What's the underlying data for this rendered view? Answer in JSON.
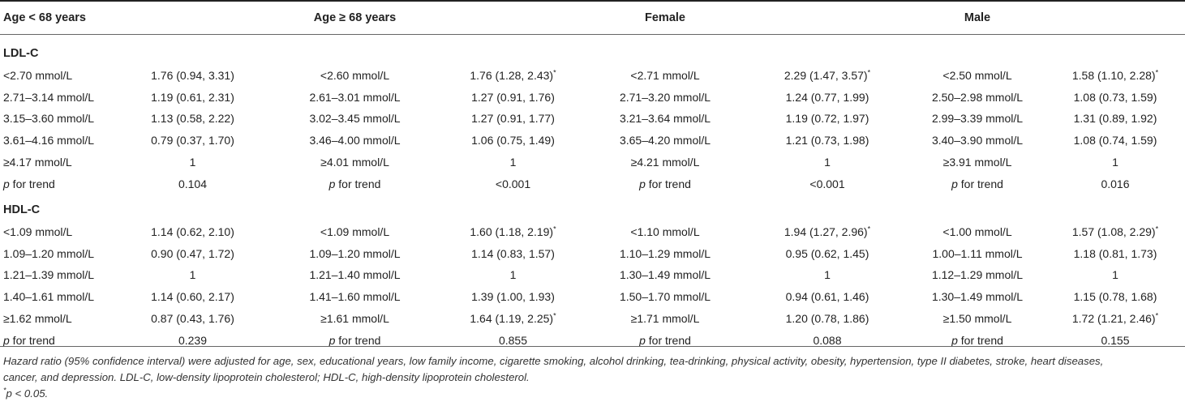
{
  "headers": {
    "col1": "Age < 68 years",
    "col2": "Age ≥ 68 years",
    "col3": "Female",
    "col4": "Male"
  },
  "sections": [
    {
      "title": "LDL-C",
      "rows": [
        [
          "<2.70 mmol/L",
          "1.76 (0.94, 3.31)",
          "<2.60 mmol/L",
          "1.76 (1.28, 2.43)*",
          "<2.71 mmol/L",
          "2.29 (1.47, 3.57)*",
          "<2.50 mmol/L",
          "1.58 (1.10, 2.28)*"
        ],
        [
          "2.71–3.14 mmol/L",
          "1.19 (0.61, 2.31)",
          "2.61–3.01 mmol/L",
          "1.27 (0.91, 1.76)",
          "2.71–3.20 mmol/L",
          "1.24 (0.77, 1.99)",
          "2.50–2.98 mmol/L",
          "1.08 (0.73, 1.59)"
        ],
        [
          "3.15–3.60 mmol/L",
          "1.13 (0.58, 2.22)",
          "3.02–3.45 mmol/L",
          "1.27 (0.91, 1.77)",
          "3.21–3.64 mmol/L",
          "1.19 (0.72, 1.97)",
          "2.99–3.39 mmol/L",
          "1.31 (0.89, 1.92)"
        ],
        [
          "3.61–4.16 mmol/L",
          "0.79 (0.37, 1.70)",
          "3.46–4.00 mmol/L",
          "1.06 (0.75, 1.49)",
          "3.65–4.20 mmol/L",
          "1.21 (0.73, 1.98)",
          "3.40–3.90 mmol/L",
          "1.08 (0.74, 1.59)"
        ],
        [
          "≥4.17 mmol/L",
          "1",
          "≥4.01 mmol/L",
          "1",
          "≥4.21 mmol/L",
          "1",
          "≥3.91 mmol/L",
          "1"
        ],
        [
          "p for trend",
          "0.104",
          "p for trend",
          "<0.001",
          "p for trend",
          "<0.001",
          "p for trend",
          "0.016"
        ]
      ]
    },
    {
      "title": "HDL-C",
      "rows": [
        [
          "<1.09 mmol/L",
          "1.14 (0.62, 2.10)",
          "<1.09 mmol/L",
          "1.60 (1.18, 2.19)*",
          "<1.10 mmol/L",
          "1.94 (1.27, 2.96)*",
          "<1.00 mmol/L",
          "1.57 (1.08, 2.29)*"
        ],
        [
          "1.09–1.20 mmol/L",
          "0.90 (0.47, 1.72)",
          "1.09–1.20 mmol/L",
          "1.14 (0.83, 1.57)",
          "1.10–1.29 mmol/L",
          "0.95 (0.62, 1.45)",
          "1.00–1.11 mmol/L",
          "1.18 (0.81, 1.73)"
        ],
        [
          "1.21–1.39 mmol/L",
          "1",
          "1.21–1.40 mmol/L",
          "1",
          "1.30–1.49 mmol/L",
          "1",
          "1.12–1.29 mmol/L",
          "1"
        ],
        [
          "1.40–1.61 mmol/L",
          "1.14 (0.60, 2.17)",
          "1.41–1.60 mmol/L",
          "1.39 (1.00, 1.93)",
          "1.50–1.70 mmol/L",
          "0.94 (0.61, 1.46)",
          "1.30–1.49 mmol/L",
          "1.15 (0.78, 1.68)"
        ],
        [
          "≥1.62 mmol/L",
          "0.87 (0.43, 1.76)",
          "≥1.61 mmol/L",
          "1.64 (1.19, 2.25)*",
          "≥1.71 mmol/L",
          "1.20 (0.78, 1.86)",
          "≥1.50 mmol/L",
          "1.72 (1.21, 2.46)*"
        ],
        [
          "p for trend",
          "0.239",
          "p for trend",
          "0.855",
          "p for trend",
          "0.088",
          "p for trend",
          "0.155"
        ]
      ]
    }
  ],
  "footnote": {
    "line1": "Hazard ratio (95% confidence interval) were adjusted for age, sex, educational years, low family income, cigarette smoking, alcohol drinking, tea-drinking, physical activity, obesity, hypertension, type II diabetes, stroke, heart diseases,",
    "line2": "cancer, and depression. LDL-C, low-density lipoprotein cholesterol; HDL-C, high-density lipoprotein cholesterol.",
    "sig_mark": "*",
    "sig_text": "p < 0.05."
  }
}
